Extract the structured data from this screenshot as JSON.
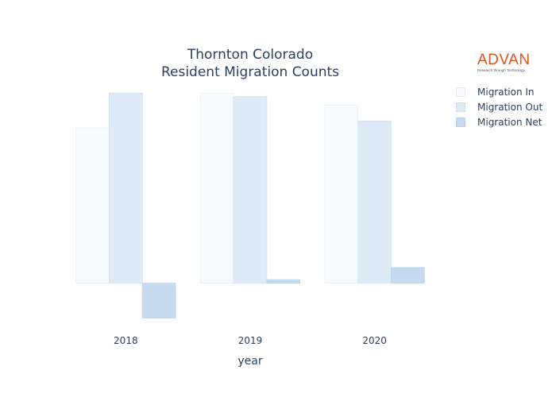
{
  "chart_data": {
    "type": "bar",
    "title": [
      "Thornton Colorado",
      "Resident Migration Counts"
    ],
    "xlabel": "year",
    "ylabel": "",
    "categories": [
      "2018",
      "2019",
      "2020"
    ],
    "series": [
      {
        "name": "Migration In",
        "values": [
          4450,
          5450,
          5100
        ],
        "color": "#f7fbff",
        "line": "#e3eef9"
      },
      {
        "name": "Migration Out",
        "values": [
          5450,
          5350,
          4650
        ],
        "color": "#deebf7",
        "line": "#d0e1f2"
      },
      {
        "name": "Migration Net",
        "values": [
          -1000,
          100,
          450
        ],
        "color": "#c6dbef",
        "line": "#b9d3eb"
      }
    ],
    "ylim": [
      -1100,
      5500
    ],
    "grid": false,
    "legend_position": "top-right"
  },
  "logo": {
    "word": "ADVAN",
    "tagline": "Research through Technology",
    "color": "#e0521b"
  }
}
